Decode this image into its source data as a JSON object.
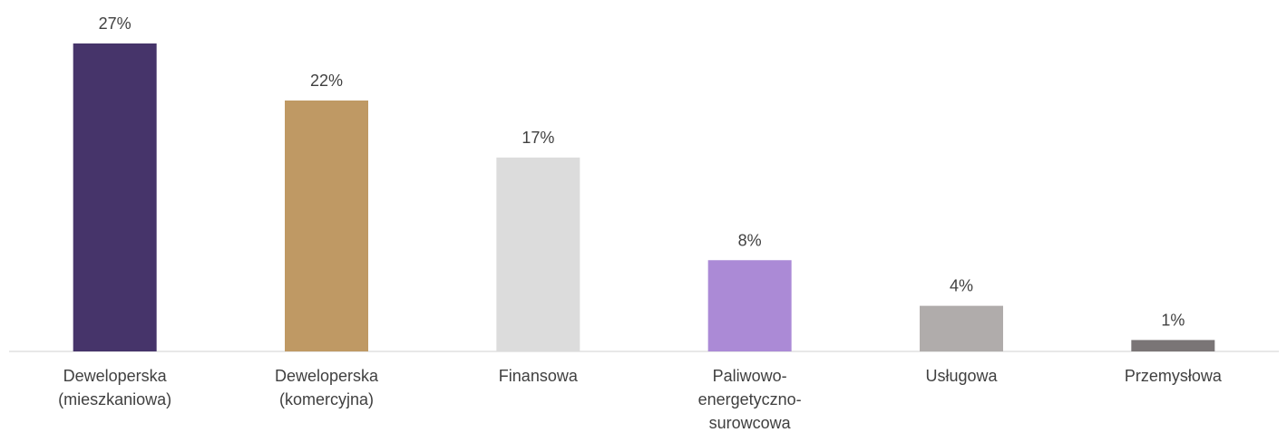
{
  "chart_data": {
    "type": "bar",
    "categories": [
      "Deweloperska (mieszkaniowa)",
      "Deweloperska (komercyjna)",
      "Finansowa",
      "Paliwowo-energetyczno-surowcowa",
      "Usługowa",
      "Przemysłowa"
    ],
    "values": [
      27,
      22,
      17,
      8,
      4,
      1
    ],
    "value_labels": [
      "27%",
      "22%",
      "17%",
      "8%",
      "4%",
      "1%"
    ],
    "colors": [
      "#46346a",
      "#bf9964",
      "#dcdcdc",
      "#ab8ad6",
      "#b0acab",
      "#7a7576"
    ]
  }
}
